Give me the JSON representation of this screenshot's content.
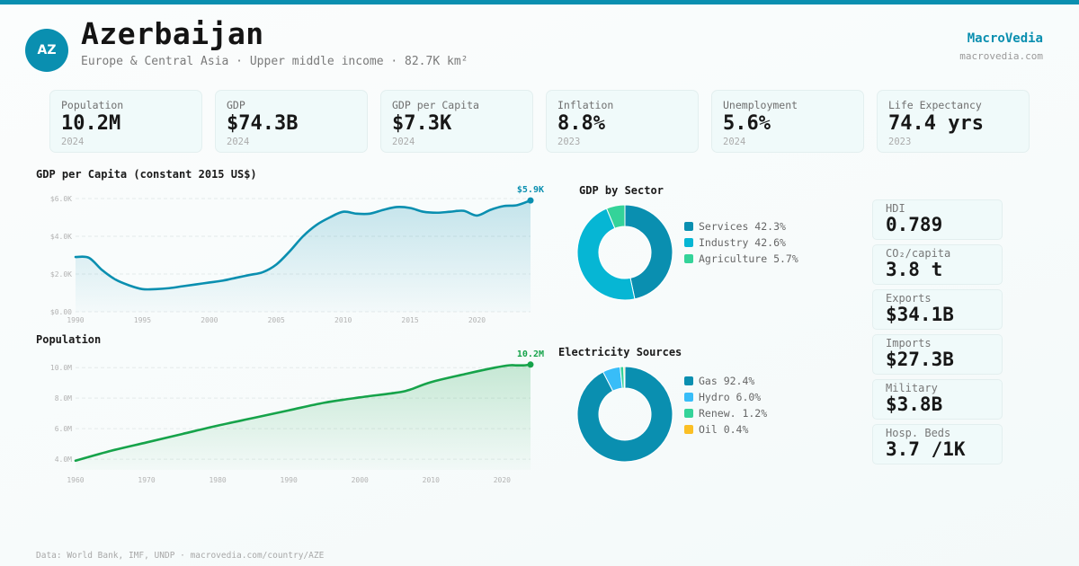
{
  "header": {
    "avatar_text": "AZ",
    "country": "Azerbaijan",
    "subtitle": "Europe & Central Asia · Upper middle income · 82.7K km²",
    "brand": "MacroVedia",
    "brand_url": "macrovedia.com"
  },
  "colors": {
    "accent": "#0a8fb0",
    "population_line": "#16a34a"
  },
  "stats": [
    {
      "label": "Population",
      "value": "10.2M",
      "year": "2024"
    },
    {
      "label": "GDP",
      "value": "$74.3B",
      "year": "2024"
    },
    {
      "label": "GDP per Capita",
      "value": "$7.3K",
      "year": "2024"
    },
    {
      "label": "Inflation",
      "value": "8.8%",
      "year": "2023"
    },
    {
      "label": "Unemployment",
      "value": "5.6%",
      "year": "2024"
    },
    {
      "label": "Life Expectancy",
      "value": "74.4 yrs",
      "year": "2023"
    }
  ],
  "side_stats": [
    {
      "label": "HDI",
      "value": "0.789"
    },
    {
      "label": "CO₂/capita",
      "value": "3.8 t"
    },
    {
      "label": "Exports",
      "value": "$34.1B"
    },
    {
      "label": "Imports",
      "value": "$27.3B"
    },
    {
      "label": "Military",
      "value": "$3.8B"
    },
    {
      "label": "Hosp. Beds",
      "value": "3.7 /1K"
    }
  ],
  "footer": "Data: World Bank, IMF, UNDP · macrovedia.com/country/AZE",
  "chart_data": [
    {
      "type": "area",
      "title": "GDP per Capita (constant 2015 US$)",
      "xlabel": "",
      "ylabel": "",
      "x": [
        1990,
        1991,
        1992,
        1993,
        1994,
        1995,
        1996,
        1997,
        1998,
        1999,
        2000,
        2001,
        2002,
        2003,
        2004,
        2005,
        2006,
        2007,
        2008,
        2009,
        2010,
        2011,
        2012,
        2013,
        2014,
        2015,
        2016,
        2017,
        2018,
        2019,
        2020,
        2021,
        2022,
        2023,
        2024
      ],
      "values": [
        2.9,
        2.86,
        2.2,
        1.7,
        1.4,
        1.2,
        1.2,
        1.25,
        1.35,
        1.45,
        1.55,
        1.65,
        1.8,
        1.95,
        2.1,
        2.5,
        3.2,
        4.0,
        4.6,
        5.0,
        5.3,
        5.2,
        5.2,
        5.4,
        5.55,
        5.5,
        5.3,
        5.25,
        5.3,
        5.35,
        5.1,
        5.4,
        5.6,
        5.65,
        5.9
      ],
      "units": "thousand US$",
      "ylim": [
        0,
        6
      ],
      "yticks": [
        {
          "v": 0,
          "label": "$0.00"
        },
        {
          "v": 2,
          "label": "$2.0K"
        },
        {
          "v": 4,
          "label": "$4.0K"
        },
        {
          "v": 6,
          "label": "$6.0K"
        }
      ],
      "xticks": [
        1990,
        1995,
        2000,
        2005,
        2010,
        2015,
        2020
      ],
      "xlim": [
        1990,
        2024
      ],
      "end_label": "$5.9K",
      "grid": true
    },
    {
      "type": "area",
      "title": "Population",
      "xlabel": "",
      "ylabel": "",
      "x": [
        1960,
        1965,
        1970,
        1975,
        1980,
        1985,
        1990,
        1995,
        2000,
        2005,
        2007,
        2010,
        2015,
        2019,
        2021,
        2022,
        2023,
        2024
      ],
      "values": [
        3.9,
        4.55,
        5.1,
        5.65,
        6.2,
        6.7,
        7.2,
        7.7,
        8.05,
        8.35,
        8.55,
        9.05,
        9.6,
        10.0,
        10.15,
        10.15,
        10.15,
        10.2
      ],
      "units": "million",
      "ylim": [
        3.3,
        10.6
      ],
      "yticks": [
        {
          "v": 4,
          "label": "4.0M"
        },
        {
          "v": 6,
          "label": "6.0M"
        },
        {
          "v": 8,
          "label": "8.0M"
        },
        {
          "v": 10,
          "label": "10.0M"
        }
      ],
      "xticks": [
        1960,
        1970,
        1980,
        1990,
        2000,
        2010,
        2020
      ],
      "xlim": [
        1960,
        2024
      ],
      "end_label": "10.2M",
      "grid": true
    },
    {
      "type": "pie",
      "title": "GDP by Sector",
      "donut": true,
      "slices": [
        {
          "label": "Services",
          "value": 42.3,
          "display": "Services 42.3%",
          "color": "#0a8fb0"
        },
        {
          "label": "Industry",
          "value": 42.6,
          "display": "Industry 42.6%",
          "color": "#06b6d4"
        },
        {
          "label": "Agriculture",
          "value": 5.7,
          "display": "Agriculture 5.7%",
          "color": "#34d399"
        }
      ],
      "legend": "right"
    },
    {
      "type": "pie",
      "title": "Electricity Sources",
      "donut": true,
      "slices": [
        {
          "label": "Gas",
          "value": 92.4,
          "display": "Gas 92.4%",
          "color": "#0a8fb0"
        },
        {
          "label": "Hydro",
          "value": 6.0,
          "display": "Hydro 6.0%",
          "color": "#38bdf8"
        },
        {
          "label": "Renew.",
          "value": 1.2,
          "display": "Renew. 1.2%",
          "color": "#34d399"
        },
        {
          "label": "Oil",
          "value": 0.4,
          "display": "Oil 0.4%",
          "color": "#fbbf24"
        }
      ],
      "legend": "right"
    }
  ]
}
